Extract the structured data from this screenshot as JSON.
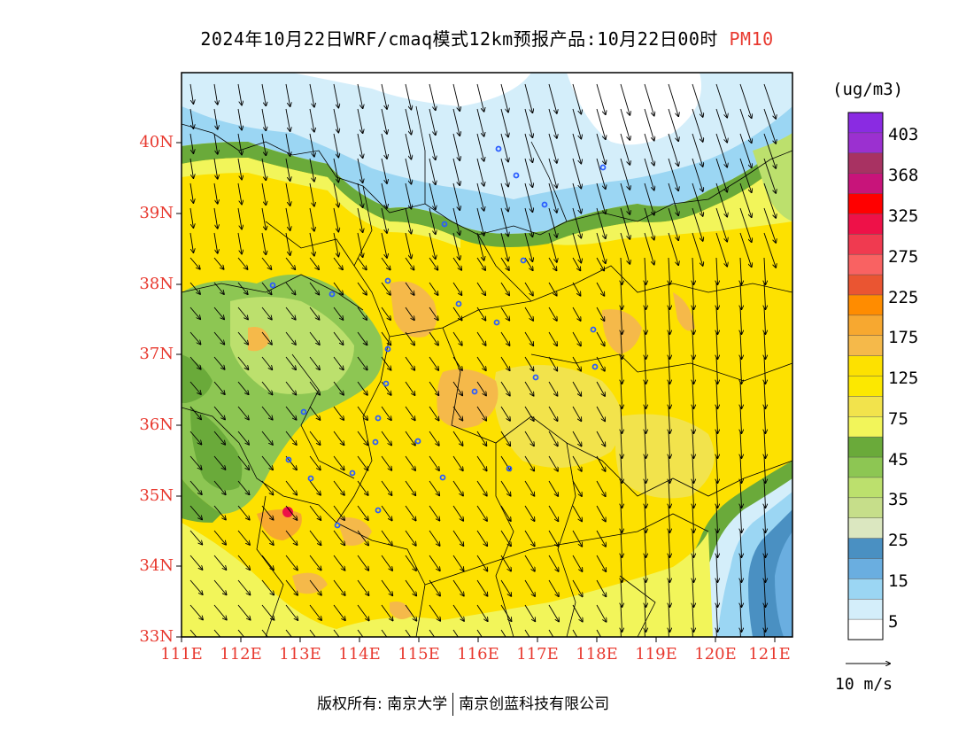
{
  "title": {
    "main": "2024年10月22日WRF/cmaq模式12km预报产品:10月22日00时",
    "pollutant": "PM10"
  },
  "axes": {
    "latitude_labels": [
      "40N",
      "39N",
      "38N",
      "37N",
      "36N",
      "35N",
      "34N",
      "33N"
    ],
    "longitude_labels": [
      "111E",
      "112E",
      "113E",
      "114E",
      "115E",
      "116E",
      "117E",
      "118E",
      "119E",
      "120E",
      "121E"
    ],
    "label_color": "#e8392f"
  },
  "legend": {
    "unit": "(ug/m3)",
    "labels": [
      "403",
      "368",
      "325",
      "275",
      "225",
      "175",
      "125",
      "75",
      "45",
      "35",
      "25",
      "15",
      "5"
    ],
    "colors_top_to_bottom": [
      "#8a2be2",
      "#9b30d0",
      "#a83262",
      "#c8147a",
      "#ff0000",
      "#ee1148",
      "#f03a50",
      "#f96262",
      "#ea5532",
      "#ff8c00",
      "#f7a830",
      "#f5b94a",
      "#fde100",
      "#fce800",
      "#f2e34c",
      "#f2f55a",
      "#6aaa3a",
      "#8dc653",
      "#bce06d",
      "#c6de8a",
      "#dbe7c0",
      "#4a90c2",
      "#6aaee0",
      "#9bd6f3",
      "#d4eefa",
      "#ffffff"
    ]
  },
  "vector_reference": {
    "label": "10 m/s"
  },
  "map": {
    "colors": {
      "yellow": "#fde100",
      "light_yellow": "#f2e34c",
      "pale_yellow": "#f2f55a",
      "orange": "#f5b94a",
      "red": "#ee1148",
      "green": "#8dc653",
      "light_green": "#bce06d",
      "dark_green": "#6aaa3a",
      "light_blue": "#d4eefa",
      "sky_blue": "#9bd6f3",
      "blue": "#6aaee0",
      "dark_blue": "#4a90c2",
      "city_marker": "#2a5cff"
    }
  },
  "footer": {
    "copyright_left": "版权所有: 南京大学",
    "copyright_right": "南京创蓝科技有限公司"
  }
}
